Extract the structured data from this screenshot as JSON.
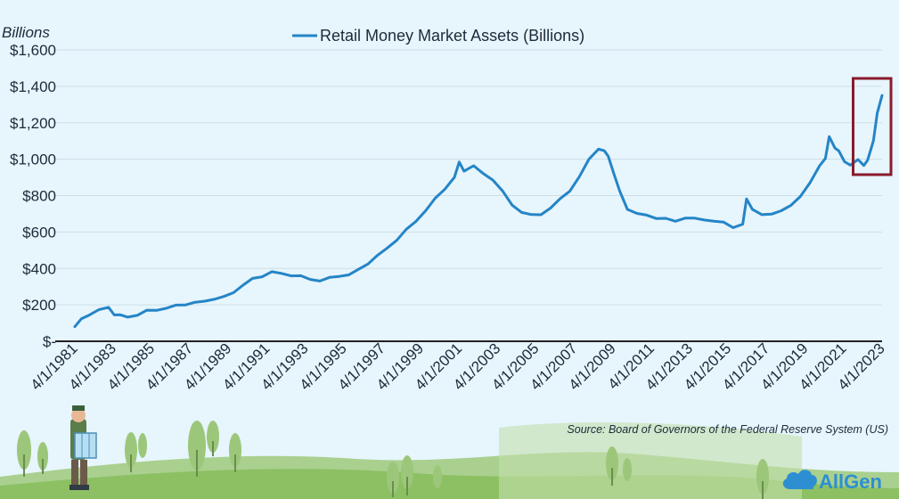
{
  "chart_data": {
    "type": "line",
    "unit_label": "Billions",
    "legend": "Retail Money Market Assets (Billions)",
    "legend_position": "top",
    "source": "Source: Board of Governors of the Federal Reserve System (US)",
    "y_ticks": [
      "$-",
      "$200",
      "$400",
      "$600",
      "$800",
      "$1,000",
      "$1,200",
      "$1,400",
      "$1,600"
    ],
    "ylim": [
      0,
      1600
    ],
    "x_ticks": [
      "4/1/1981",
      "4/1/1983",
      "4/1/1985",
      "4/1/1987",
      "4/1/1989",
      "4/1/1991",
      "4/1/1993",
      "4/1/1995",
      "4/1/1997",
      "4/1/1999",
      "4/1/2001",
      "4/1/2003",
      "4/1/2005",
      "4/1/2007",
      "4/1/2009",
      "4/1/2011",
      "4/1/2013",
      "4/1/2015",
      "4/1/2017",
      "4/1/2019",
      "4/1/2021",
      "4/1/2023"
    ],
    "xlim": [
      1981.25,
      2023.25
    ],
    "grid": "horizontal",
    "series": [
      {
        "color": "#2485c6",
        "x": [
          1981.25,
          1981.6,
          1982.0,
          1982.5,
          1983.0,
          1983.3,
          1983.6,
          1984.0,
          1984.5,
          1985.0,
          1985.5,
          1986.0,
          1986.5,
          1987.0,
          1987.5,
          1988.0,
          1988.5,
          1989.0,
          1989.5,
          1990.0,
          1990.5,
          1991.0,
          1991.5,
          1992.0,
          1992.5,
          1993.0,
          1993.5,
          1994.0,
          1994.5,
          1995.0,
          1995.5,
          1996.0,
          1996.5,
          1997.0,
          1997.5,
          1998.0,
          1998.5,
          1999.0,
          1999.5,
          2000.0,
          2000.5,
          2001.0,
          2001.25,
          2001.5,
          2002.0,
          2002.5,
          2003.0,
          2003.5,
          2004.0,
          2004.5,
          2005.0,
          2005.5,
          2006.0,
          2006.5,
          2007.0,
          2007.5,
          2008.0,
          2008.5,
          2008.8,
          2009.0,
          2009.3,
          2009.6,
          2010.0,
          2010.5,
          2011.0,
          2011.5,
          2012.0,
          2012.5,
          2013.0,
          2013.5,
          2014.0,
          2014.5,
          2015.0,
          2015.5,
          2016.0,
          2016.2,
          2016.5,
          2017.0,
          2017.5,
          2018.0,
          2018.5,
          2019.0,
          2019.5,
          2020.0,
          2020.3,
          2020.5,
          2020.8,
          2021.0,
          2021.3,
          2021.6,
          2022.0,
          2022.3,
          2022.5,
          2022.8,
          2023.0,
          2023.25
        ],
        "values": [
          80,
          120,
          150,
          170,
          185,
          150,
          140,
          135,
          145,
          165,
          175,
          180,
          195,
          205,
          210,
          220,
          235,
          240,
          270,
          310,
          340,
          360,
          380,
          370,
          365,
          355,
          340,
          335,
          345,
          360,
          365,
          390,
          430,
          470,
          510,
          560,
          610,
          660,
          720,
          780,
          840,
          900,
          980,
          940,
          960,
          920,
          890,
          820,
          750,
          710,
          690,
          700,
          730,
          780,
          830,
          900,
          1000,
          1060,
          1040,
          1020,
          920,
          820,
          730,
          700,
          690,
          680,
          670,
          660,
          680,
          670,
          670,
          660,
          650,
          630,
          640,
          780,
          730,
          690,
          700,
          720,
          740,
          800,
          870,
          960,
          1010,
          1120,
          1060,
          1050,
          980,
          970,
          1000,
          960,
          1000,
          1100,
          1250,
          1350
        ]
      }
    ],
    "highlight": {
      "x_from": 2022.3,
      "x_to": 2023.25,
      "color": "#8b1a2b"
    }
  },
  "brand": {
    "name": "AllGen",
    "color": "#2d8fd2"
  }
}
